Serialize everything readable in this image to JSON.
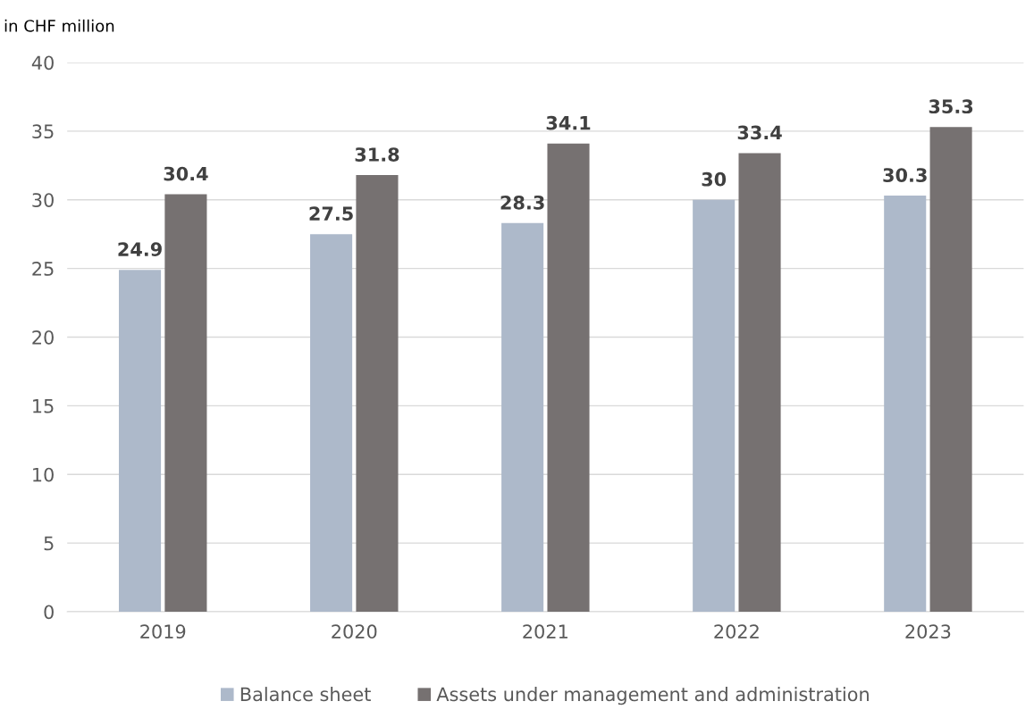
{
  "chart_data": {
    "type": "bar",
    "subtitle": "in CHF million",
    "categories": [
      "2019",
      "2020",
      "2021",
      "2022",
      "2023"
    ],
    "series": [
      {
        "name": "Balance sheet",
        "color": "#adb9ca",
        "values": [
          24.9,
          27.5,
          28.3,
          30,
          30.3
        ]
      },
      {
        "name": "Assets under management and administration",
        "color": "#767171",
        "values": [
          30.4,
          31.8,
          34.1,
          33.4,
          35.3
        ]
      }
    ],
    "ylim": [
      0,
      40
    ],
    "yticks": [
      0,
      5,
      10,
      15,
      20,
      25,
      30,
      35,
      40
    ],
    "grid": "y",
    "legend": "bottom",
    "data_labels": true
  }
}
